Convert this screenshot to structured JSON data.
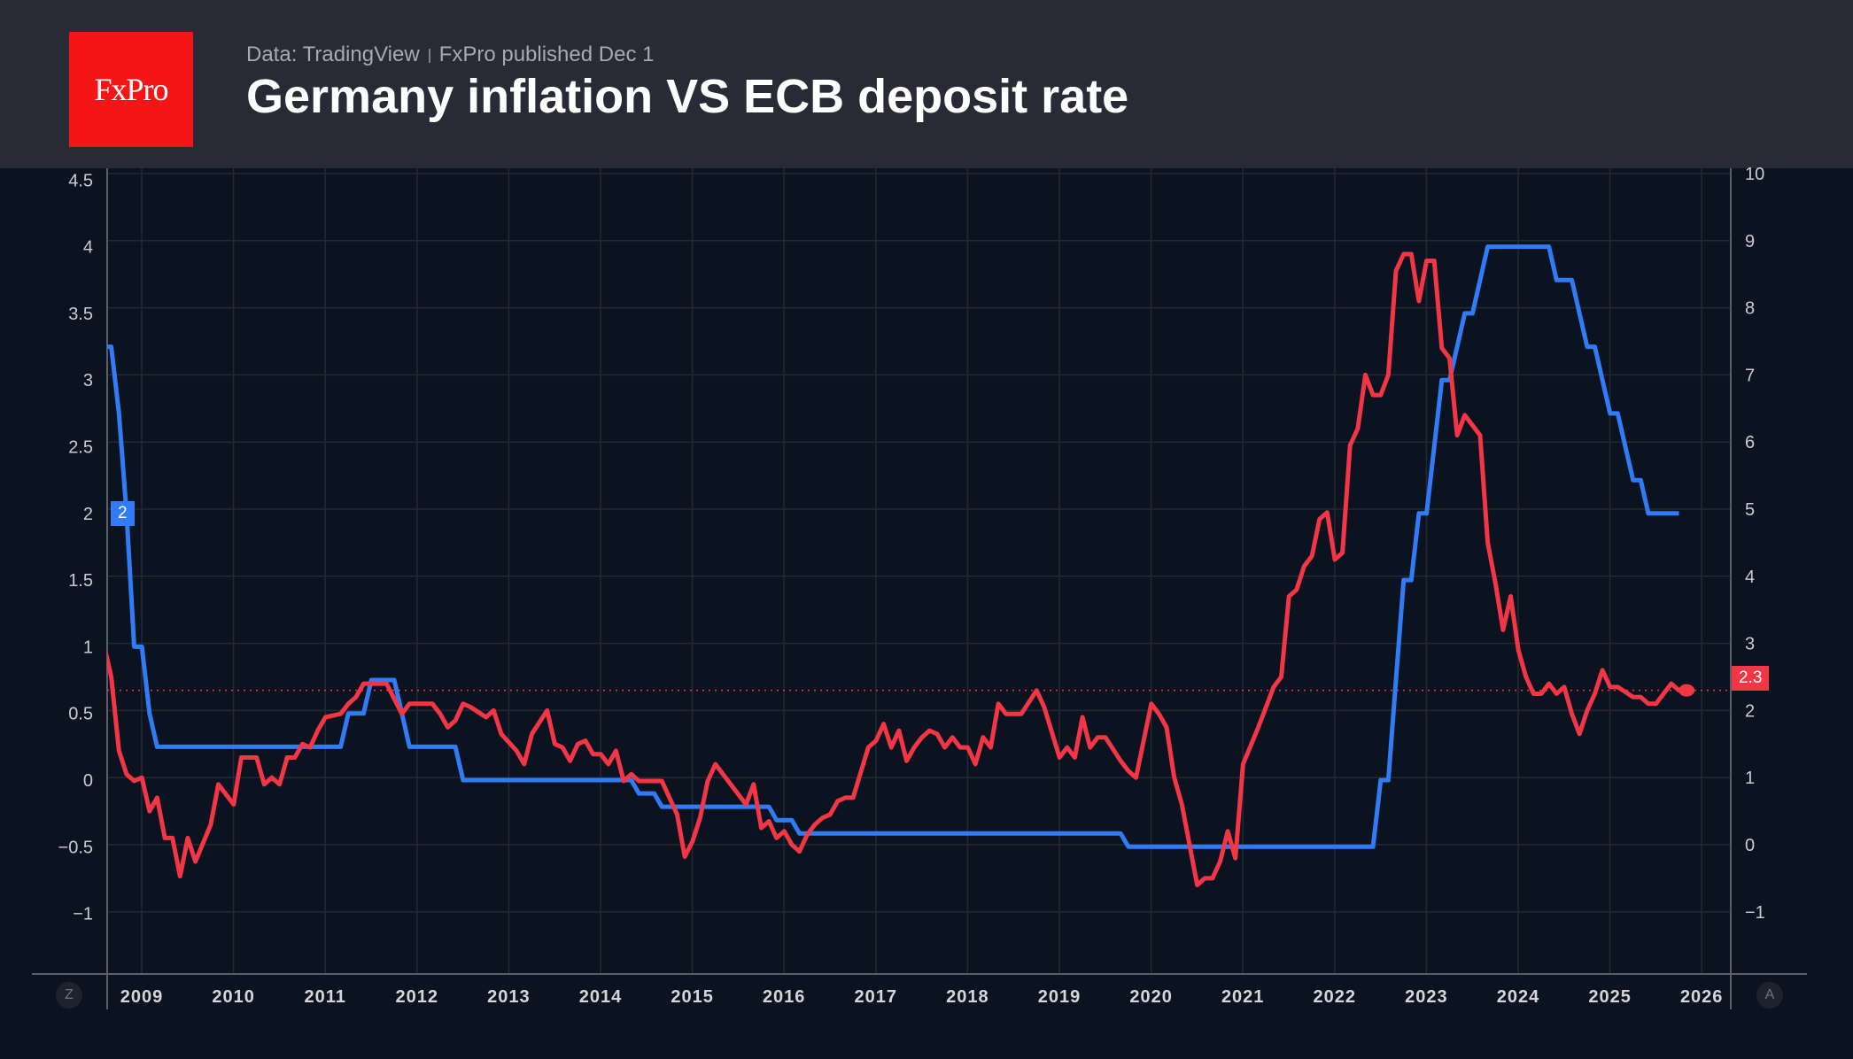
{
  "header": {
    "logo_text": "FxPro",
    "source": "Data: TradingView",
    "published": "FxPro published Dec 1",
    "title": "Germany inflation VS ECB deposit rate"
  },
  "controls": {
    "left_button": "Z",
    "right_button": "A"
  },
  "chart_data": {
    "type": "line",
    "title": "Germany inflation VS ECB deposit rate",
    "xlabel": "",
    "ylabel": "",
    "grid": true,
    "x_ticks": [
      "2009",
      "2010",
      "2011",
      "2012",
      "2013",
      "2014",
      "2015",
      "2016",
      "2017",
      "2018",
      "2019",
      "2020",
      "2021",
      "2022",
      "2023",
      "2024",
      "2025",
      "2026"
    ],
    "left_axis": {
      "ticks": [
        "4.5",
        "4",
        "3.5",
        "3",
        "2.5",
        "2",
        "1.5",
        "1",
        "0.5",
        "0",
        "−0.5",
        "−1"
      ],
      "tick_values": [
        4.5,
        4,
        3.5,
        3,
        2.5,
        2,
        1.5,
        1,
        0.5,
        0,
        -0.5,
        -1
      ],
      "range": [
        -1.5,
        4.55
      ]
    },
    "right_axis": {
      "ticks": [
        "10",
        "9",
        "8",
        "7",
        "6",
        "5",
        "4",
        "3",
        "2",
        "1",
        "0",
        "−1"
      ],
      "tick_values": [
        10,
        9,
        8,
        7,
        6,
        5,
        4,
        3,
        2,
        1,
        0,
        -1
      ],
      "range": [
        -1.9,
        10.1
      ]
    },
    "series": [
      {
        "axis": "left",
        "color": "#2f7cf6",
        "last_value_label": "2",
        "points": [
          [
            "2008-08",
            3.25
          ],
          [
            "2008-09",
            3.25
          ],
          [
            "2008-10",
            2.75
          ],
          [
            "2008-11",
            2.0
          ],
          [
            "2008-12",
            1.0
          ],
          [
            "2009-01",
            1.0
          ],
          [
            "2009-02",
            0.5
          ],
          [
            "2009-03",
            0.25
          ],
          [
            "2011-03",
            0.25
          ],
          [
            "2011-04",
            0.5
          ],
          [
            "2011-06",
            0.5
          ],
          [
            "2011-07",
            0.75
          ],
          [
            "2011-10",
            0.75
          ],
          [
            "2011-11",
            0.5
          ],
          [
            "2011-12",
            0.25
          ],
          [
            "2012-06",
            0.25
          ],
          [
            "2012-07",
            0.0
          ],
          [
            "2014-05",
            0.0
          ],
          [
            "2014-06",
            -0.1
          ],
          [
            "2014-08",
            -0.1
          ],
          [
            "2014-09",
            -0.2
          ],
          [
            "2015-11",
            -0.2
          ],
          [
            "2015-12",
            -0.3
          ],
          [
            "2016-02",
            -0.3
          ],
          [
            "2016-03",
            -0.4
          ],
          [
            "2019-09",
            -0.4
          ],
          [
            "2019-10",
            -0.5
          ],
          [
            "2022-06",
            -0.5
          ],
          [
            "2022-07",
            0.0
          ],
          [
            "2022-08",
            0.0
          ],
          [
            "2022-09",
            0.75
          ],
          [
            "2022-10",
            1.5
          ],
          [
            "2022-11",
            1.5
          ],
          [
            "2022-12",
            2.0
          ],
          [
            "2023-01",
            2.0
          ],
          [
            "2023-02",
            2.5
          ],
          [
            "2023-03",
            3.0
          ],
          [
            "2023-04",
            3.0
          ],
          [
            "2023-05",
            3.25
          ],
          [
            "2023-06",
            3.5
          ],
          [
            "2023-07",
            3.5
          ],
          [
            "2023-08",
            3.75
          ],
          [
            "2023-09",
            4.0
          ],
          [
            "2024-05",
            4.0
          ],
          [
            "2024-06",
            3.75
          ],
          [
            "2024-08",
            3.75
          ],
          [
            "2024-09",
            3.5
          ],
          [
            "2024-10",
            3.25
          ],
          [
            "2024-11",
            3.25
          ],
          [
            "2024-12",
            3.0
          ],
          [
            "2025-01",
            2.75
          ],
          [
            "2025-02",
            2.75
          ],
          [
            "2025-03",
            2.5
          ],
          [
            "2025-04",
            2.25
          ],
          [
            "2025-05",
            2.25
          ],
          [
            "2025-06",
            2.0
          ],
          [
            "2025-10",
            2.0
          ]
        ]
      },
      {
        "axis": "right",
        "color": "#f23645",
        "last_value_label": "2.3",
        "points": [
          [
            "2008-08",
            3.0
          ],
          [
            "2008-09",
            2.5
          ],
          [
            "2008-10",
            1.4
          ],
          [
            "2008-11",
            1.05
          ],
          [
            "2008-12",
            0.95
          ],
          [
            "2009-01",
            1.0
          ],
          [
            "2009-02",
            0.5
          ],
          [
            "2009-03",
            0.7
          ],
          [
            "2009-04",
            0.1
          ],
          [
            "2009-05",
            0.1
          ],
          [
            "2009-06",
            -0.47
          ],
          [
            "2009-07",
            0.1
          ],
          [
            "2009-08",
            -0.25
          ],
          [
            "2009-10",
            0.3
          ],
          [
            "2009-11",
            0.9
          ],
          [
            "2010-01",
            0.6
          ],
          [
            "2010-02",
            1.3
          ],
          [
            "2010-04",
            1.3
          ],
          [
            "2010-05",
            0.9
          ],
          [
            "2010-06",
            1.0
          ],
          [
            "2010-07",
            0.9
          ],
          [
            "2010-08",
            1.3
          ],
          [
            "2010-09",
            1.3
          ],
          [
            "2010-10",
            1.5
          ],
          [
            "2010-11",
            1.45
          ],
          [
            "2010-12",
            1.7
          ],
          [
            "2011-01",
            1.9
          ],
          [
            "2011-03",
            1.95
          ],
          [
            "2011-04",
            2.1
          ],
          [
            "2011-05",
            2.2
          ],
          [
            "2011-06",
            2.4
          ],
          [
            "2011-07",
            2.4
          ],
          [
            "2011-09",
            2.4
          ],
          [
            "2011-11",
            1.95
          ],
          [
            "2011-12",
            2.1
          ],
          [
            "2012-03",
            2.1
          ],
          [
            "2012-04",
            1.95
          ],
          [
            "2012-05",
            1.75
          ],
          [
            "2012-06",
            1.85
          ],
          [
            "2012-07",
            2.1
          ],
          [
            "2012-08",
            2.05
          ],
          [
            "2012-10",
            1.9
          ],
          [
            "2012-11",
            2.0
          ],
          [
            "2012-12",
            1.65
          ],
          [
            "2013-02",
            1.4
          ],
          [
            "2013-03",
            1.2
          ],
          [
            "2013-04",
            1.65
          ],
          [
            "2013-06",
            2.0
          ],
          [
            "2013-07",
            1.5
          ],
          [
            "2013-08",
            1.45
          ],
          [
            "2013-09",
            1.25
          ],
          [
            "2013-10",
            1.5
          ],
          [
            "2013-11",
            1.55
          ],
          [
            "2013-12",
            1.35
          ],
          [
            "2014-01",
            1.35
          ],
          [
            "2014-02",
            1.2
          ],
          [
            "2014-03",
            1.4
          ],
          [
            "2014-04",
            0.95
          ],
          [
            "2014-05",
            1.05
          ],
          [
            "2014-06",
            0.95
          ],
          [
            "2014-09",
            0.95
          ],
          [
            "2014-11",
            0.45
          ],
          [
            "2014-12",
            -0.18
          ],
          [
            "2015-01",
            0.05
          ],
          [
            "2015-02",
            0.4
          ],
          [
            "2015-03",
            0.95
          ],
          [
            "2015-04",
            1.2
          ],
          [
            "2015-06",
            0.9
          ],
          [
            "2015-07",
            0.75
          ],
          [
            "2015-08",
            0.6
          ],
          [
            "2015-09",
            0.9
          ],
          [
            "2015-10",
            0.25
          ],
          [
            "2015-11",
            0.35
          ],
          [
            "2015-12",
            0.1
          ],
          [
            "2016-01",
            0.2
          ],
          [
            "2016-02",
            0.0
          ],
          [
            "2016-03",
            -0.1
          ],
          [
            "2016-04",
            0.15
          ],
          [
            "2016-05",
            0.3
          ],
          [
            "2016-06",
            0.4
          ],
          [
            "2016-07",
            0.45
          ],
          [
            "2016-08",
            0.65
          ],
          [
            "2016-09",
            0.7
          ],
          [
            "2016-10",
            0.7
          ],
          [
            "2016-12",
            1.45
          ],
          [
            "2017-01",
            1.55
          ],
          [
            "2017-02",
            1.8
          ],
          [
            "2017-03",
            1.45
          ],
          [
            "2017-04",
            1.7
          ],
          [
            "2017-05",
            1.25
          ],
          [
            "2017-06",
            1.45
          ],
          [
            "2017-07",
            1.6
          ],
          [
            "2017-08",
            1.7
          ],
          [
            "2017-09",
            1.65
          ],
          [
            "2017-10",
            1.45
          ],
          [
            "2017-11",
            1.6
          ],
          [
            "2017-12",
            1.45
          ],
          [
            "2018-01",
            1.45
          ],
          [
            "2018-02",
            1.2
          ],
          [
            "2018-03",
            1.6
          ],
          [
            "2018-04",
            1.45
          ],
          [
            "2018-05",
            2.1
          ],
          [
            "2018-06",
            1.95
          ],
          [
            "2018-08",
            1.95
          ],
          [
            "2018-10",
            2.3
          ],
          [
            "2018-11",
            2.05
          ],
          [
            "2019-01",
            1.3
          ],
          [
            "2019-02",
            1.45
          ],
          [
            "2019-03",
            1.3
          ],
          [
            "2019-04",
            1.9
          ],
          [
            "2019-05",
            1.45
          ],
          [
            "2019-06",
            1.6
          ],
          [
            "2019-07",
            1.6
          ],
          [
            "2019-09",
            1.25
          ],
          [
            "2019-10",
            1.1
          ],
          [
            "2019-11",
            1.0
          ],
          [
            "2020-01",
            2.1
          ],
          [
            "2020-02",
            1.95
          ],
          [
            "2020-03",
            1.75
          ],
          [
            "2020-04",
            1.0
          ],
          [
            "2020-05",
            0.6
          ],
          [
            "2020-07",
            -0.6
          ],
          [
            "2020-08",
            -0.5
          ],
          [
            "2020-09",
            -0.5
          ],
          [
            "2020-10",
            -0.25
          ],
          [
            "2020-11",
            0.2
          ],
          [
            "2020-12",
            -0.2
          ],
          [
            "2021-01",
            1.2
          ],
          [
            "2021-03",
            1.75
          ],
          [
            "2021-04",
            2.05
          ],
          [
            "2021-05",
            2.35
          ],
          [
            "2021-06",
            2.5
          ],
          [
            "2021-07",
            3.7
          ],
          [
            "2021-08",
            3.8
          ],
          [
            "2021-09",
            4.15
          ],
          [
            "2021-10",
            4.3
          ],
          [
            "2021-11",
            4.85
          ],
          [
            "2021-12",
            4.95
          ],
          [
            "2022-01",
            4.25
          ],
          [
            "2022-02",
            4.35
          ],
          [
            "2022-03",
            5.95
          ],
          [
            "2022-04",
            6.2
          ],
          [
            "2022-05",
            7.0
          ],
          [
            "2022-06",
            6.7
          ],
          [
            "2022-07",
            6.7
          ],
          [
            "2022-08",
            7.0
          ],
          [
            "2022-09",
            8.55
          ],
          [
            "2022-10",
            8.8
          ],
          [
            "2022-11",
            8.8
          ],
          [
            "2022-12",
            8.1
          ],
          [
            "2023-01",
            8.7
          ],
          [
            "2023-02",
            8.7
          ],
          [
            "2023-03",
            7.4
          ],
          [
            "2023-04",
            7.25
          ],
          [
            "2023-05",
            6.1
          ],
          [
            "2023-06",
            6.4
          ],
          [
            "2023-07",
            6.25
          ],
          [
            "2023-08",
            6.1
          ],
          [
            "2023-09",
            4.5
          ],
          [
            "2023-10",
            3.9
          ],
          [
            "2023-11",
            3.2
          ],
          [
            "2023-12",
            3.7
          ],
          [
            "2024-01",
            2.9
          ],
          [
            "2024-02",
            2.5
          ],
          [
            "2024-03",
            2.25
          ],
          [
            "2024-04",
            2.25
          ],
          [
            "2024-05",
            2.4
          ],
          [
            "2024-06",
            2.25
          ],
          [
            "2024-07",
            2.35
          ],
          [
            "2024-08",
            1.95
          ],
          [
            "2024-09",
            1.65
          ],
          [
            "2024-10",
            2.0
          ],
          [
            "2024-11",
            2.25
          ],
          [
            "2024-12",
            2.6
          ],
          [
            "2025-01",
            2.35
          ],
          [
            "2025-02",
            2.35
          ],
          [
            "2025-04",
            2.2
          ],
          [
            "2025-05",
            2.2
          ],
          [
            "2025-06",
            2.1
          ],
          [
            "2025-07",
            2.1
          ],
          [
            "2025-09",
            2.4
          ],
          [
            "2025-10",
            2.3
          ],
          [
            "2025-11",
            2.3
          ]
        ]
      }
    ]
  }
}
